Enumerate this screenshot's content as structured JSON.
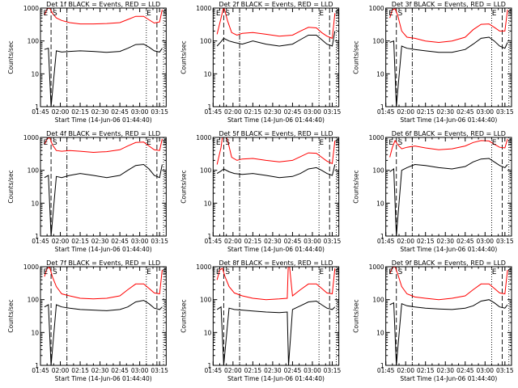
{
  "x_tick_labels": [
    "01:45",
    "02:00",
    "02:15",
    "02:30",
    "02:45",
    "03:00",
    "03:15"
  ],
  "y_tick_labels": [
    "1",
    "10",
    "100",
    "1000"
  ],
  "ylabel": "Counts/sec",
  "xlabel": "Start Time (14-Jun-06 01:44:40)",
  "marker_labels": {
    "start": "S",
    "end": "E"
  },
  "colors": {
    "events": "#000000",
    "lld": "#ff0000"
  },
  "chart_data": [
    {
      "type": "line",
      "title": "Det 1f BLACK = Events, RED = LLD",
      "x_range_minutes": [
        0,
        95
      ],
      "ylim": [
        1,
        1000
      ],
      "yscale": "log",
      "markers": {
        "s_dash": 8,
        "s_dashdot": 20,
        "e_dot": 80,
        "e_dash": 88,
        "s_end": 93
      },
      "series": [
        {
          "name": "BLACK = Events",
          "color": "#000000",
          "x": [
            3,
            6,
            8,
            12,
            16,
            22,
            30,
            40,
            50,
            60,
            66,
            72,
            78,
            82,
            86,
            90,
            92
          ],
          "y": [
            55,
            60,
            1,
            50,
            46,
            48,
            50,
            48,
            45,
            48,
            60,
            78,
            80,
            65,
            50,
            46,
            60
          ]
        },
        {
          "name": "RED = LLD",
          "color": "#ff0000",
          "x": [
            3,
            5,
            7,
            9,
            12,
            16,
            22,
            30,
            40,
            50,
            60,
            66,
            72,
            78,
            82,
            86,
            90,
            92
          ],
          "y": [
            600,
            950,
            1000,
            700,
            500,
            420,
            360,
            330,
            330,
            340,
            360,
            450,
            560,
            560,
            440,
            350,
            380,
            900
          ]
        }
      ]
    },
    {
      "type": "line",
      "title": "Det 2f BLACK = Events, RED = LLD",
      "x_range_minutes": [
        0,
        95
      ],
      "ylim": [
        1,
        1000
      ],
      "yscale": "log",
      "markers": {
        "s_dash": 8,
        "s_dashdot": 20,
        "e_dot": 80,
        "e_dash": 88,
        "s_end": 93
      },
      "series": [
        {
          "name": "BLACK = Events",
          "color": "#000000",
          "x": [
            3,
            6,
            8,
            12,
            16,
            22,
            30,
            40,
            50,
            60,
            66,
            72,
            78,
            82,
            86,
            90,
            92
          ],
          "y": [
            70,
            95,
            120,
            100,
            90,
            80,
            100,
            80,
            70,
            80,
            110,
            150,
            150,
            110,
            80,
            70,
            200
          ]
        },
        {
          "name": "RED = LLD",
          "color": "#ff0000",
          "x": [
            3,
            6,
            8,
            11,
            14,
            18,
            22,
            30,
            40,
            50,
            60,
            66,
            72,
            78,
            82,
            86,
            90,
            92
          ],
          "y": [
            160,
            500,
            1100,
            400,
            180,
            150,
            170,
            180,
            160,
            140,
            150,
            200,
            260,
            250,
            180,
            140,
            120,
            700
          ]
        }
      ]
    },
    {
      "type": "line",
      "title": "Det 3f BLACK = Events, RED = LLD",
      "x_range_minutes": [
        0,
        95
      ],
      "ylim": [
        1,
        1000
      ],
      "yscale": "log",
      "markers": {
        "s_dash": 8,
        "s_dashdot": 20,
        "e_dot": 80,
        "e_dash": 88,
        "s_end": 93
      },
      "series": [
        {
          "name": "BLACK = Events",
          "color": "#000000",
          "x": [
            3,
            6,
            8,
            12,
            16,
            22,
            30,
            40,
            50,
            60,
            66,
            72,
            78,
            82,
            86,
            90,
            92
          ],
          "y": [
            90,
            100,
            1,
            70,
            60,
            55,
            50,
            45,
            45,
            55,
            80,
            120,
            130,
            100,
            70,
            60,
            90
          ]
        },
        {
          "name": "RED = LLD",
          "color": "#ff0000",
          "x": [
            3,
            5,
            7,
            9,
            12,
            16,
            22,
            30,
            40,
            50,
            60,
            66,
            72,
            78,
            82,
            86,
            90,
            92
          ],
          "y": [
            500,
            900,
            950,
            600,
            200,
            130,
            120,
            100,
            90,
            100,
            130,
            220,
            320,
            330,
            260,
            200,
            200,
            900
          ]
        }
      ]
    },
    {
      "type": "line",
      "title": "Det 4f BLACK = Events, RED = LLD",
      "x_range_minutes": [
        0,
        95
      ],
      "ylim": [
        1,
        1000
      ],
      "yscale": "log",
      "markers": {
        "s_dash": 8,
        "s_dashdot": 20,
        "e_dot": 80,
        "e_dash": 88,
        "s_end": 93
      },
      "series": [
        {
          "name": "BLACK = Events",
          "color": "#000000",
          "x": [
            3,
            6,
            8,
            12,
            16,
            22,
            30,
            40,
            50,
            60,
            66,
            72,
            78,
            82,
            86,
            90,
            92
          ],
          "y": [
            60,
            70,
            1,
            65,
            60,
            70,
            80,
            70,
            60,
            70,
            100,
            140,
            150,
            110,
            70,
            60,
            150
          ]
        },
        {
          "name": "RED = LLD",
          "color": "#ff0000",
          "x": [
            3,
            5,
            7,
            9,
            12,
            16,
            22,
            30,
            40,
            50,
            60,
            66,
            72,
            78,
            82,
            86,
            90,
            92
          ],
          "y": [
            600,
            900,
            1000,
            600,
            400,
            380,
            400,
            380,
            350,
            370,
            420,
            550,
            700,
            720,
            550,
            420,
            400,
            900
          ]
        }
      ]
    },
    {
      "type": "line",
      "title": "Det 5f BLACK = Events, RED = LLD",
      "x_range_minutes": [
        0,
        95
      ],
      "ylim": [
        1,
        1000
      ],
      "yscale": "log",
      "markers": {
        "s_dash": 8,
        "s_dashdot": 20,
        "e_dot": 80,
        "e_dash": 88,
        "s_end": 93
      },
      "series": [
        {
          "name": "BLACK = Events",
          "color": "#000000",
          "x": [
            3,
            6,
            8,
            12,
            16,
            22,
            30,
            40,
            50,
            60,
            66,
            72,
            78,
            82,
            86,
            90,
            92
          ],
          "y": [
            80,
            95,
            110,
            90,
            80,
            75,
            80,
            70,
            60,
            65,
            80,
            110,
            120,
            100,
            80,
            70,
            150
          ]
        },
        {
          "name": "RED = LLD",
          "color": "#ff0000",
          "x": [
            3,
            6,
            8,
            11,
            14,
            18,
            22,
            30,
            40,
            50,
            60,
            66,
            72,
            78,
            82,
            86,
            90,
            92
          ],
          "y": [
            150,
            500,
            2000,
            800,
            250,
            200,
            220,
            230,
            200,
            180,
            200,
            260,
            340,
            330,
            250,
            190,
            160,
            800
          ]
        }
      ]
    },
    {
      "type": "line",
      "title": "Det 6f BLACK = Events, RED = LLD",
      "x_range_minutes": [
        0,
        95
      ],
      "ylim": [
        1,
        1000
      ],
      "yscale": "log",
      "markers": {
        "s_dash": 8,
        "s_dashdot": 20,
        "e_dot": 80,
        "e_dash": 88,
        "s_end": 93
      },
      "series": [
        {
          "name": "BLACK = Events",
          "color": "#000000",
          "x": [
            3,
            6,
            8,
            12,
            16,
            22,
            30,
            40,
            50,
            60,
            66,
            72,
            78,
            82,
            86,
            90,
            92
          ],
          "y": [
            90,
            110,
            1,
            100,
            120,
            150,
            140,
            120,
            110,
            130,
            180,
            220,
            230,
            180,
            140,
            120,
            150
          ]
        },
        {
          "name": "RED = LLD",
          "color": "#ff0000",
          "x": [
            3,
            5,
            7,
            9,
            12,
            16,
            22,
            30,
            40,
            50,
            60,
            66,
            72,
            78,
            82,
            86,
            90,
            92
          ],
          "y": [
            250,
            500,
            800,
            600,
            450,
            500,
            550,
            480,
            420,
            450,
            550,
            700,
            800,
            780,
            620,
            500,
            480,
            900
          ]
        }
      ]
    },
    {
      "type": "line",
      "title": "Det 7f BLACK = Events, RED = LLD",
      "x_range_minutes": [
        0,
        95
      ],
      "ylim": [
        1,
        1000
      ],
      "yscale": "log",
      "markers": {
        "s_dash": 8,
        "s_dashdot": 20,
        "e_dot": 80,
        "e_dash": 88,
        "s_end": 93
      },
      "series": [
        {
          "name": "BLACK = Events",
          "color": "#000000",
          "x": [
            3,
            6,
            8,
            12,
            16,
            22,
            30,
            40,
            50,
            60,
            66,
            72,
            78,
            82,
            86,
            90,
            92
          ],
          "y": [
            60,
            70,
            1,
            70,
            60,
            55,
            50,
            48,
            46,
            50,
            60,
            85,
            95,
            75,
            55,
            50,
            60
          ]
        },
        {
          "name": "RED = LLD",
          "color": "#ff0000",
          "x": [
            3,
            5,
            7,
            9,
            12,
            16,
            22,
            30,
            40,
            50,
            60,
            66,
            72,
            78,
            82,
            86,
            90,
            92
          ],
          "y": [
            500,
            900,
            950,
            500,
            250,
            150,
            130,
            110,
            105,
            110,
            130,
            200,
            300,
            300,
            220,
            160,
            150,
            800
          ]
        }
      ]
    },
    {
      "type": "line",
      "title": "Det 8f BLACK = Events, RED = LLD",
      "x_range_minutes": [
        0,
        95
      ],
      "ylim": [
        1,
        1000
      ],
      "yscale": "log",
      "markers": {
        "s_dash": 8,
        "s_dashdot": 20,
        "e_dot": 80,
        "e_dash": 88,
        "s_end": 93
      },
      "series": [
        {
          "name": "BLACK = Events",
          "color": "#000000",
          "x": [
            3,
            6,
            8,
            12,
            16,
            22,
            30,
            40,
            50,
            56,
            57,
            60,
            66,
            72,
            78,
            82,
            86,
            90,
            92
          ],
          "y": [
            50,
            60,
            1,
            55,
            50,
            48,
            45,
            42,
            40,
            42,
            1,
            50,
            65,
            85,
            90,
            70,
            55,
            50,
            60
          ]
        },
        {
          "name": "RED = LLD",
          "color": "#ff0000",
          "x": [
            3,
            5,
            7,
            9,
            12,
            16,
            22,
            30,
            40,
            50,
            56,
            57,
            60,
            66,
            72,
            78,
            82,
            86,
            90,
            92
          ],
          "y": [
            400,
            800,
            900,
            500,
            250,
            160,
            130,
            110,
            100,
            105,
            110,
            2000,
            130,
            200,
            300,
            300,
            220,
            160,
            150,
            900
          ]
        }
      ]
    },
    {
      "type": "line",
      "title": "Det 9f BLACK = Events, RED = LLD",
      "x_range_minutes": [
        0,
        95
      ],
      "ylim": [
        1,
        1000
      ],
      "yscale": "log",
      "markers": {
        "s_dash": 8,
        "s_dashdot": 20,
        "e_dot": 80,
        "e_dash": 88,
        "s_end": 93
      },
      "series": [
        {
          "name": "BLACK = Events",
          "color": "#000000",
          "x": [
            3,
            6,
            8,
            12,
            16,
            22,
            30,
            40,
            50,
            60,
            66,
            72,
            78,
            82,
            86,
            90,
            92
          ],
          "y": [
            70,
            80,
            1,
            75,
            65,
            60,
            55,
            52,
            50,
            55,
            65,
            90,
            100,
            80,
            60,
            55,
            70
          ]
        },
        {
          "name": "RED = LLD",
          "color": "#ff0000",
          "x": [
            3,
            5,
            7,
            9,
            12,
            16,
            22,
            30,
            40,
            50,
            60,
            66,
            72,
            78,
            82,
            86,
            90,
            92
          ],
          "y": [
            600,
            950,
            1000,
            600,
            250,
            150,
            120,
            110,
            100,
            110,
            130,
            200,
            300,
            300,
            220,
            160,
            150,
            800
          ]
        }
      ]
    }
  ]
}
